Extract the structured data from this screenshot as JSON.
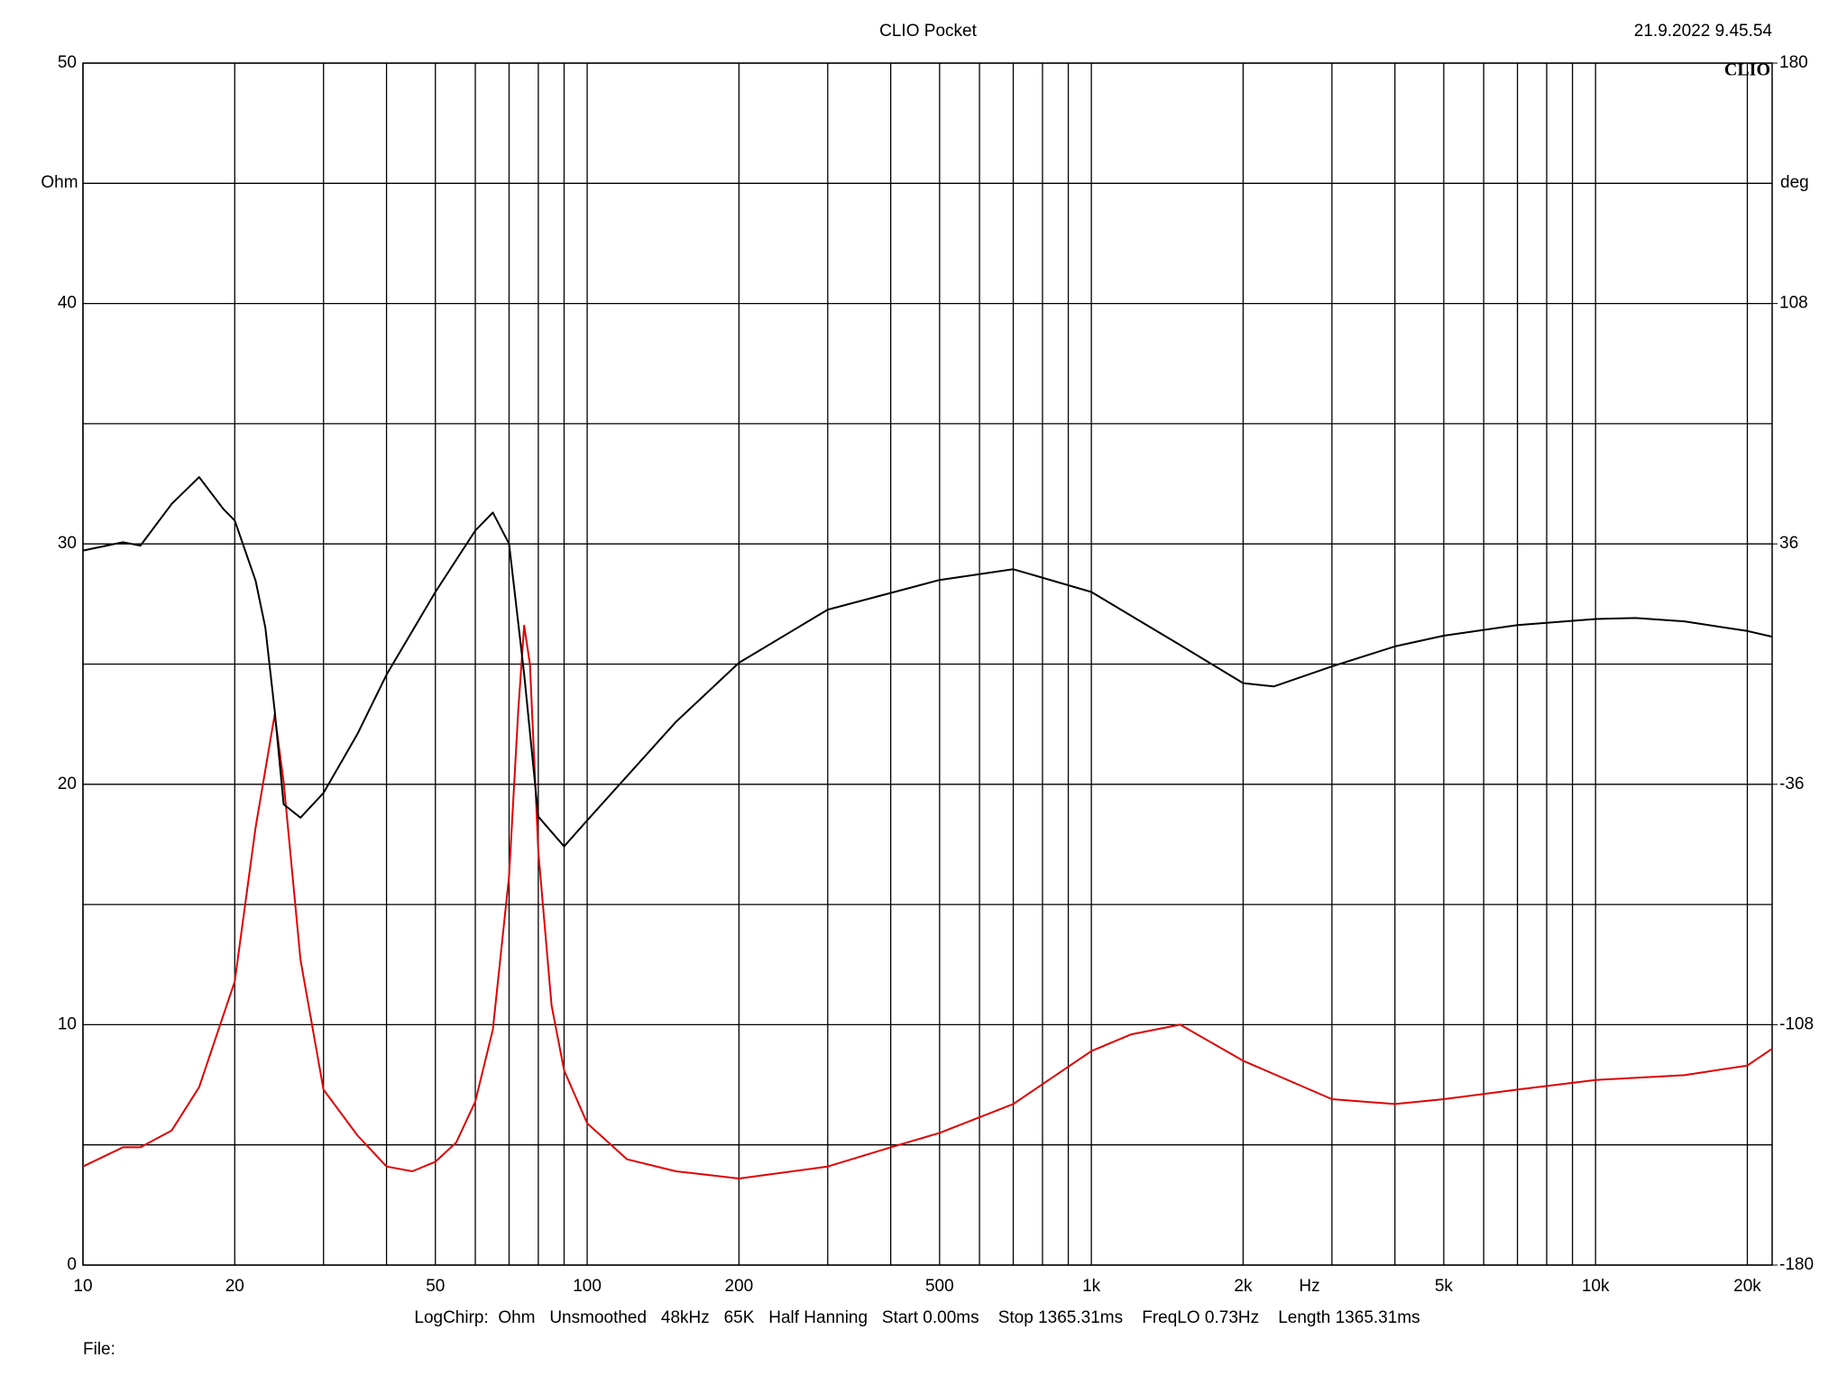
{
  "chart_data": {
    "type": "line",
    "title": "CLIO Pocket",
    "timestamp": "21.9.2022 9.45.54",
    "logo": "CLIO",
    "y_label": "Ohm",
    "y2_label": "deg",
    "x_label": "Hz",
    "footer": "LogChirp:  Ohm   Unsmoothed   48kHz   65K   Half Hanning   Start 0.00ms    Stop 1365.31ms    FreqLO 0.73Hz    Length 1365.31ms",
    "file_label": "File:",
    "log_x": true,
    "grid": true,
    "xlim": [
      10,
      22400
    ],
    "xticks": [
      10,
      20,
      50,
      100,
      200,
      500,
      {
        "value": 1000,
        "label": "1k"
      },
      {
        "value": 2000,
        "label": "2k"
      },
      {
        "value": 5000,
        "label": "5k"
      },
      {
        "value": 10000,
        "label": "10k"
      },
      {
        "value": 20000,
        "label": "20k"
      }
    ],
    "xminor": [
      30,
      40,
      60,
      70,
      80,
      90,
      300,
      400,
      600,
      700,
      800,
      900,
      3000,
      4000,
      6000,
      7000,
      8000,
      9000
    ],
    "ylim": [
      0,
      50
    ],
    "yticks": [
      0,
      10,
      20,
      30,
      40,
      50
    ],
    "yminor": [
      5,
      15,
      25,
      35,
      45
    ],
    "y2lim": [
      -180,
      180
    ],
    "y2ticks": [
      -180,
      -108,
      -36,
      36,
      108,
      180
    ],
    "series": [
      {
        "color": "#e00000",
        "x": [
          10,
          12,
          13,
          15,
          17,
          20,
          22,
          24,
          25,
          27,
          30,
          35,
          40,
          45,
          50,
          55,
          60,
          65,
          70,
          73,
          75,
          77,
          80,
          85,
          90,
          100,
          120,
          150,
          200,
          300,
          400,
          500,
          700,
          1000,
          1200,
          1500,
          2000,
          3000,
          4000,
          5000,
          7000,
          10000,
          15000,
          20000,
          22400
        ],
        "values": [
          4.1,
          4.9,
          4.9,
          5.6,
          7.4,
          11.8,
          18.2,
          22.9,
          20.1,
          12.7,
          7.3,
          5.4,
          4.1,
          3.9,
          4.3,
          5.1,
          6.8,
          9.8,
          16.2,
          23.1,
          26.6,
          25.0,
          17.2,
          10.8,
          8.1,
          5.9,
          4.4,
          3.9,
          3.6,
          4.1,
          4.9,
          5.5,
          6.7,
          8.9,
          9.6,
          10.0,
          8.5,
          6.9,
          6.7,
          6.9,
          7.3,
          7.7,
          7.9,
          8.3,
          9.0
        ]
      },
      {
        "color": "#000000",
        "axis": "y2",
        "x": [
          10,
          12,
          13,
          15,
          17,
          19,
          20,
          22,
          23,
          24,
          25,
          27,
          30,
          35,
          40,
          50,
          60,
          65,
          70,
          75,
          80,
          90,
          100,
          150,
          200,
          300,
          500,
          700,
          1000,
          1500,
          2000,
          2300,
          3000,
          4000,
          5000,
          7000,
          10000,
          12000,
          15000,
          20000,
          22400
        ],
        "values": [
          34,
          36.5,
          35.5,
          48,
          56,
          46.4,
          43,
          25,
          11,
          -14,
          -42,
          -46,
          -38.6,
          -21,
          -3.2,
          21.6,
          40,
          45.4,
          36,
          -3,
          -45.7,
          -54.6,
          -46.8,
          -17.3,
          0.4,
          16.3,
          25.2,
          28.4,
          21.6,
          5.7,
          -5.7,
          -6.7,
          -0.7,
          5.3,
          8.5,
          11.7,
          13.5,
          13.8,
          12.8,
          9.9,
          8.2
        ]
      }
    ]
  }
}
